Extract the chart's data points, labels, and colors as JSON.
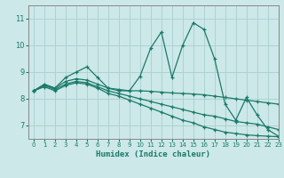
{
  "title": "",
  "xlabel": "Humidex (Indice chaleur)",
  "xlim": [
    -0.5,
    23
  ],
  "ylim": [
    6.5,
    11.5
  ],
  "yticks": [
    7,
    8,
    9,
    10,
    11
  ],
  "xticks": [
    0,
    1,
    2,
    3,
    4,
    5,
    6,
    7,
    8,
    9,
    10,
    11,
    12,
    13,
    14,
    15,
    16,
    17,
    18,
    19,
    20,
    21,
    22,
    23
  ],
  "background_color": "#cce8e8",
  "grid_color": "#aacece",
  "line_color": "#1a7a6a",
  "lines": [
    {
      "x": [
        0,
        1,
        2,
        3,
        4,
        5,
        6,
        7,
        8,
        9,
        10,
        11,
        12,
        13,
        14,
        15,
        16,
        17,
        18,
        19,
        20,
        21,
        22,
        23
      ],
      "y": [
        8.3,
        8.55,
        8.4,
        8.8,
        9.0,
        9.2,
        8.8,
        8.4,
        8.3,
        8.3,
        8.85,
        9.9,
        10.5,
        8.8,
        10.0,
        10.85,
        10.6,
        9.5,
        7.8,
        7.2,
        8.05,
        7.4,
        6.85,
        6.6
      ]
    },
    {
      "x": [
        0,
        1,
        2,
        3,
        4,
        5,
        6,
        7,
        8,
        9,
        10,
        11,
        12,
        13,
        14,
        15,
        16,
        17,
        18,
        19,
        20,
        21,
        22,
        23
      ],
      "y": [
        8.3,
        8.5,
        8.4,
        8.65,
        8.75,
        8.7,
        8.55,
        8.4,
        8.35,
        8.3,
        8.3,
        8.28,
        8.25,
        8.22,
        8.2,
        8.18,
        8.15,
        8.1,
        8.05,
        8.0,
        7.95,
        7.9,
        7.85,
        7.8
      ]
    },
    {
      "x": [
        0,
        1,
        2,
        3,
        4,
        5,
        6,
        7,
        8,
        9,
        10,
        11,
        12,
        13,
        14,
        15,
        16,
        17,
        18,
        19,
        20,
        21,
        22,
        23
      ],
      "y": [
        8.3,
        8.5,
        8.35,
        8.55,
        8.65,
        8.6,
        8.45,
        8.3,
        8.2,
        8.1,
        8.0,
        7.9,
        7.8,
        7.7,
        7.6,
        7.5,
        7.4,
        7.35,
        7.25,
        7.15,
        7.1,
        7.05,
        6.95,
        6.85
      ]
    },
    {
      "x": [
        0,
        1,
        2,
        3,
        4,
        5,
        6,
        7,
        8,
        9,
        10,
        11,
        12,
        13,
        14,
        15,
        16,
        17,
        18,
        19,
        20,
        21,
        22,
        23
      ],
      "y": [
        8.3,
        8.45,
        8.3,
        8.5,
        8.6,
        8.55,
        8.4,
        8.2,
        8.1,
        7.95,
        7.8,
        7.65,
        7.5,
        7.35,
        7.2,
        7.1,
        6.95,
        6.85,
        6.75,
        6.7,
        6.65,
        6.62,
        6.6,
        6.58
      ]
    }
  ]
}
